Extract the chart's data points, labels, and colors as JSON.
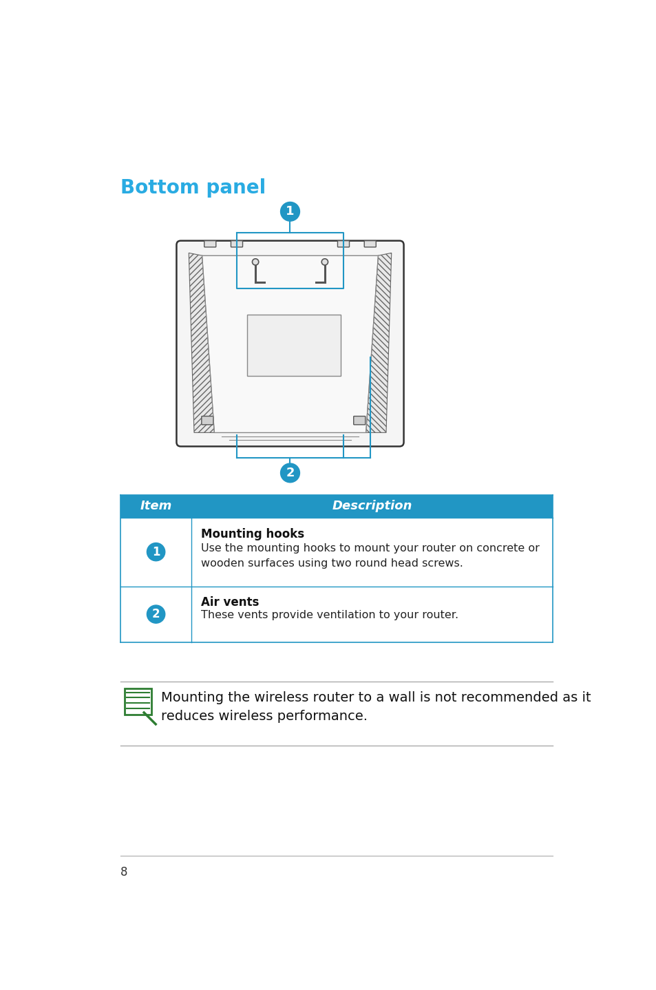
{
  "title": "Bottom panel",
  "title_color": "#29ABE2",
  "title_fontsize": 20,
  "background_color": "#ffffff",
  "table_header_bg": "#2196C4",
  "table_header_text": "#ffffff",
  "table_border_color": "#2196C4",
  "badge_color": "#2196C4",
  "badge_text_color": "#ffffff",
  "item_col_header": "Item",
  "desc_col_header": "Description",
  "row1_badge": "1",
  "row1_title": "Mounting hooks",
  "row1_desc": "Use the mounting hooks to mount your router on concrete or\nwooden surfaces using two round head screws.",
  "row2_badge": "2",
  "row2_title": "Air vents",
  "row2_desc": "These vents provide ventilation to your router.",
  "note_text": "Mounting the wireless router to a wall is not recommended as it\nreduces wireless performance.",
  "page_number": "8",
  "callout_color": "#2196C4",
  "diagram_edge": "#333333",
  "diagram_fill": "#f9f9f9",
  "hatch_color": "#888888",
  "note_line_color": "#aaaaaa",
  "note_green": "#2e7d32"
}
